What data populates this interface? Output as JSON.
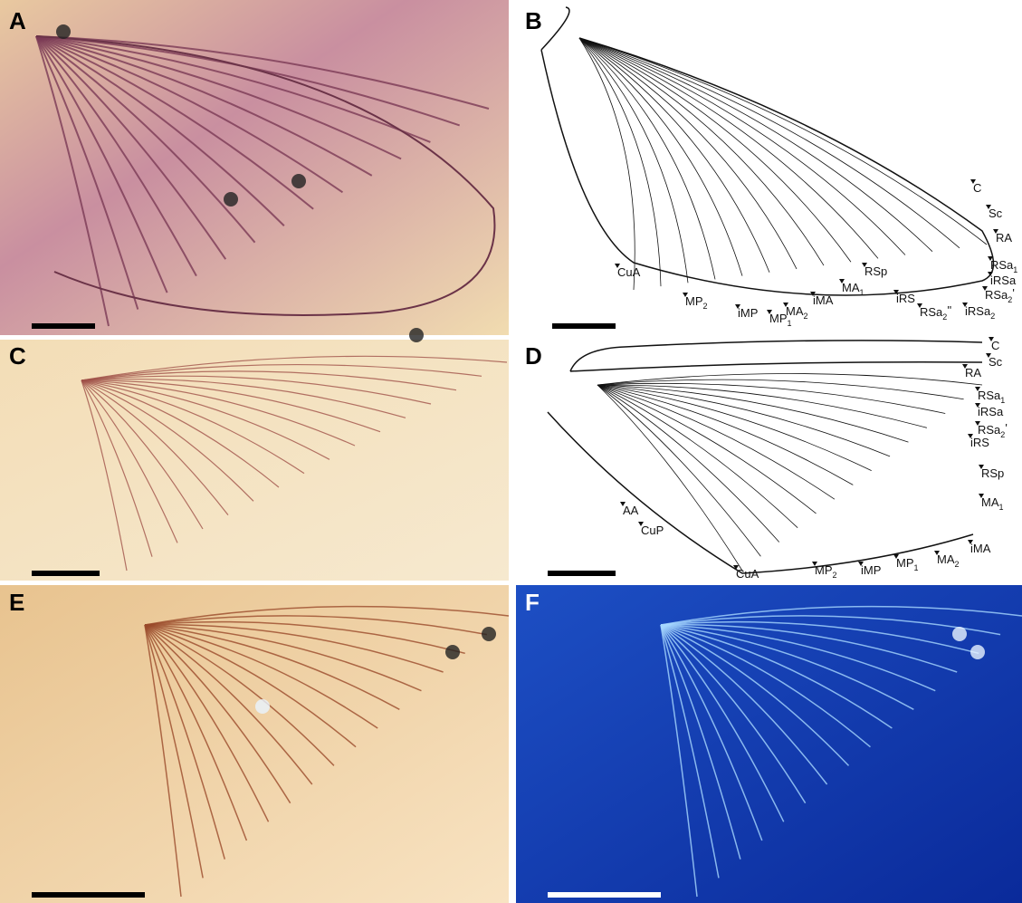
{
  "panels": [
    {
      "label": "A"
    },
    {
      "label": "B",
      "veins": [
        {
          "text": "C"
        },
        {
          "text": "Sc"
        },
        {
          "text": "RA"
        },
        {
          "text": "RSa",
          "sub": "1"
        },
        {
          "text": "iRSa"
        },
        {
          "text": "RSa",
          "sub": "2",
          "mark": "'"
        },
        {
          "text": "iRSa",
          "sub": "2"
        },
        {
          "text": "RSa",
          "sub": "2",
          "mark": "''"
        },
        {
          "text": "iRS"
        },
        {
          "text": "RSp"
        },
        {
          "text": "MA",
          "sub": "1"
        },
        {
          "text": "iMA"
        },
        {
          "text": "MA",
          "sub": "2"
        },
        {
          "text": "MP",
          "sub": "1"
        },
        {
          "text": "iMP"
        },
        {
          "text": "MP",
          "sub": "2"
        },
        {
          "text": "CuA"
        }
      ]
    },
    {
      "label": "C"
    },
    {
      "label": "D",
      "veins": [
        {
          "text": "C"
        },
        {
          "text": "Sc"
        },
        {
          "text": "RA"
        },
        {
          "text": "RSa",
          "sub": "1"
        },
        {
          "text": "iRSa"
        },
        {
          "text": "RSa",
          "sub": "2",
          "mark": "'"
        },
        {
          "text": "iRS"
        },
        {
          "text": "RSp"
        },
        {
          "text": "MA",
          "sub": "1"
        },
        {
          "text": "iMA"
        },
        {
          "text": "MA",
          "sub": "2"
        },
        {
          "text": "MP",
          "sub": "1"
        },
        {
          "text": "iMP"
        },
        {
          "text": "MP",
          "sub": "2"
        },
        {
          "text": "CuA"
        },
        {
          "text": "CuP"
        },
        {
          "text": "AA"
        }
      ]
    },
    {
      "label": "E"
    },
    {
      "label": "F"
    }
  ]
}
